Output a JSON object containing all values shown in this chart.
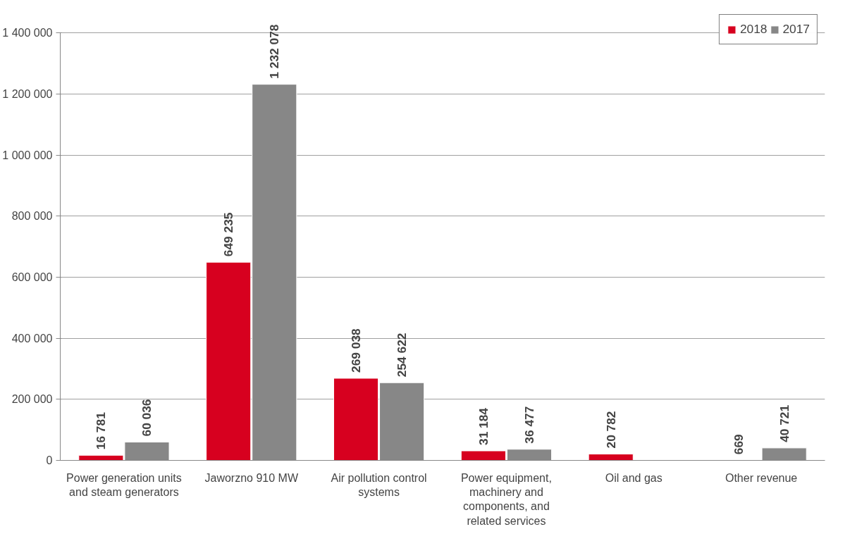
{
  "chart_data": {
    "type": "bar",
    "categories": [
      "Power generation units and steam generators",
      "Jaworzno 910 MW",
      "Air pollution control systems",
      "Power equipment, machinery and components, and related services",
      "Oil and gas",
      "Other revenue"
    ],
    "series": [
      {
        "name": "2018",
        "color": "#d7001f",
        "values": [
          16781,
          649235,
          269038,
          31184,
          20782,
          669
        ],
        "value_labels": [
          "16 781",
          "649 235",
          "269 038",
          "31 184",
          "20 782",
          "669"
        ]
      },
      {
        "name": "2017",
        "color": "#878787",
        "values": [
          60036,
          1232078,
          254622,
          36477,
          null,
          40721
        ],
        "value_labels": [
          "60 036",
          "1 232 078",
          "254 622",
          "36 477",
          null,
          "40 721"
        ]
      }
    ],
    "ylim": [
      0,
      1400000
    ],
    "yticks": [
      {
        "value": 0,
        "label": "0"
      },
      {
        "value": 200000,
        "label": "200 000"
      },
      {
        "value": 400000,
        "label": "400 000"
      },
      {
        "value": 600000,
        "label": "600 000"
      },
      {
        "value": 800000,
        "label": "800 000"
      },
      {
        "value": 1000000,
        "label": "1 000 000"
      },
      {
        "value": 1200000,
        "label": "1 200 000"
      },
      {
        "value": 1400000,
        "label": "1 400 000"
      }
    ],
    "grid": "y",
    "legend": "top right"
  }
}
